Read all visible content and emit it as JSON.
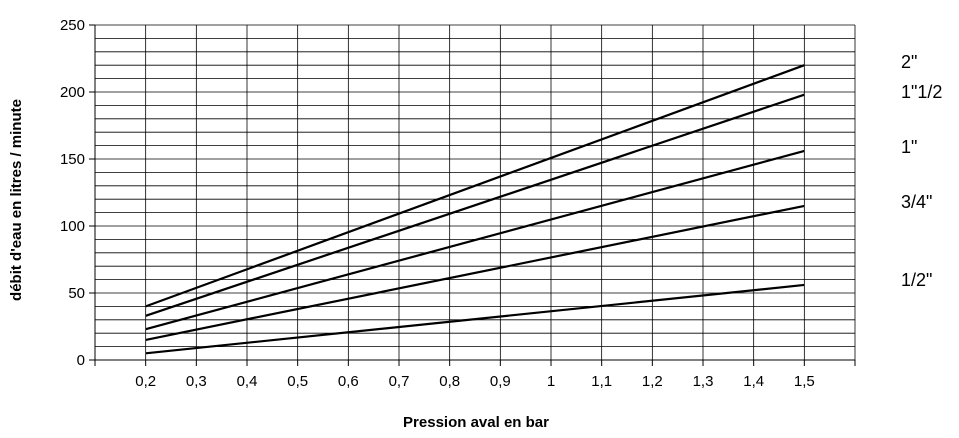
{
  "chart_data": {
    "type": "line",
    "title": "",
    "xlabel": "Pression aval en bar",
    "ylabel": "débit d'eau en litres / minute",
    "x_tick_labels": [
      "0,2",
      "0,3",
      "0,4",
      "0,5",
      "0,6",
      "0,7",
      "0,8",
      "0,9",
      "1",
      "1,1",
      "1,2",
      "1,3",
      "1,4",
      "1,5"
    ],
    "x_ticks": [
      0.2,
      0.3,
      0.4,
      0.5,
      0.6,
      0.7,
      0.8,
      0.9,
      1.0,
      1.1,
      1.2,
      1.3,
      1.4,
      1.5
    ],
    "y_tick_labels": [
      "0",
      "50",
      "100",
      "150",
      "200",
      "250"
    ],
    "y_ticks": [
      0,
      50,
      100,
      150,
      200,
      250
    ],
    "xlim": [
      0.1,
      1.6
    ],
    "ylim": [
      0,
      250
    ],
    "y_minor_step": 10,
    "grid": true,
    "series": [
      {
        "name": "2\"",
        "x": [
          0.2,
          1.5
        ],
        "y": [
          40,
          220
        ]
      },
      {
        "name": "1\"1/2",
        "x": [
          0.2,
          1.5
        ],
        "y": [
          33,
          198
        ]
      },
      {
        "name": "1\"",
        "x": [
          0.2,
          1.5
        ],
        "y": [
          23,
          156
        ]
      },
      {
        "name": "3/4\"",
        "x": [
          0.2,
          1.5
        ],
        "y": [
          15,
          115
        ]
      },
      {
        "name": "1/2\"",
        "x": [
          0.2,
          1.5
        ],
        "y": [
          5,
          56
        ]
      }
    ]
  }
}
